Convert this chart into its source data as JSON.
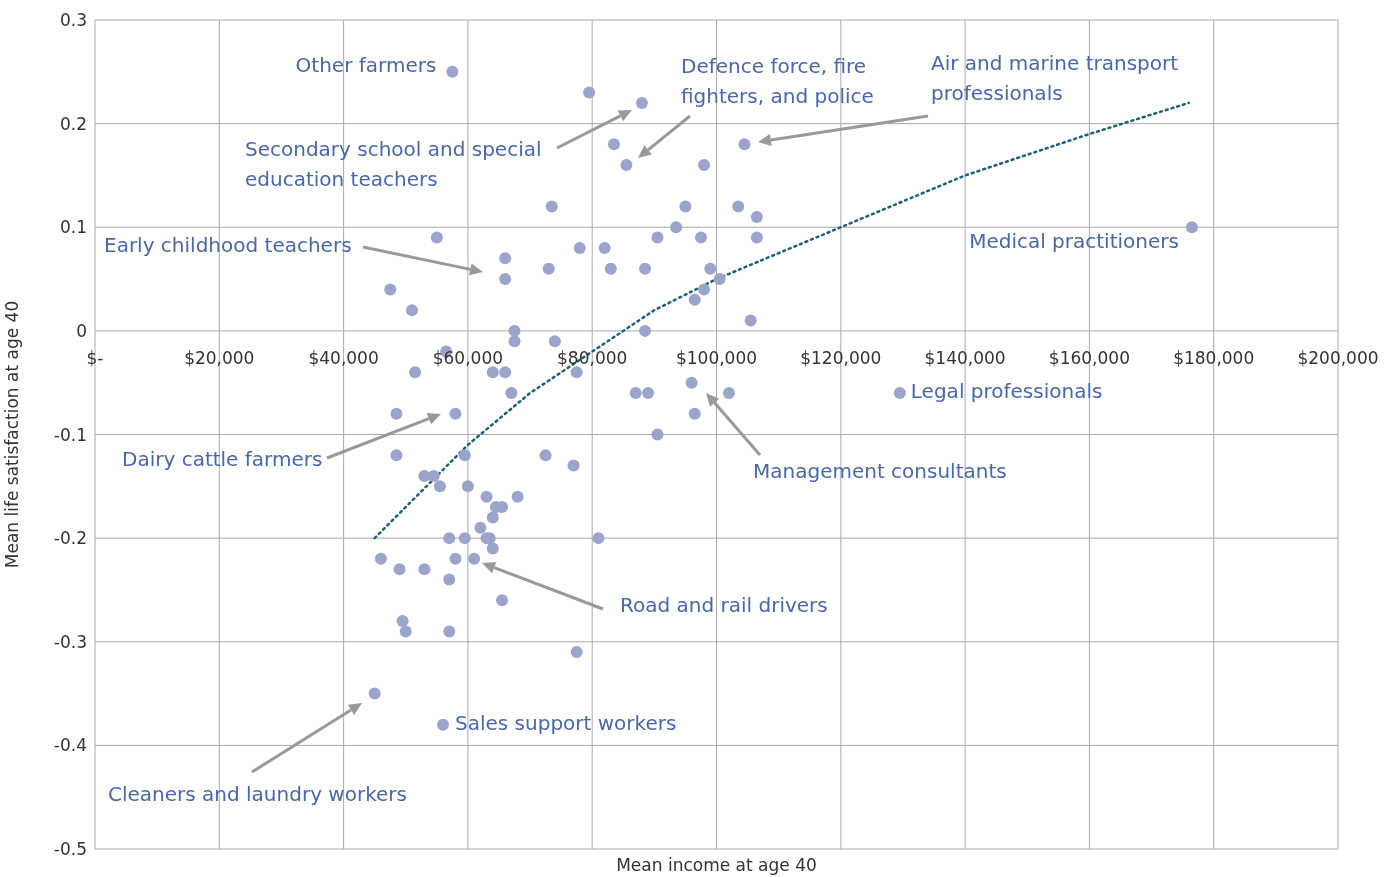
{
  "chart_data": {
    "type": "scatter",
    "xlabel": "Mean income at age 40",
    "ylabel": "Mean life satisfaction at age 40",
    "xlim": [
      0,
      200000
    ],
    "ylim": [
      -0.5,
      0.3
    ],
    "xticks": [
      {
        "value": 0,
        "label": "$-"
      },
      {
        "value": 20000,
        "label": "$20,000"
      },
      {
        "value": 40000,
        "label": "$40,000"
      },
      {
        "value": 60000,
        "label": "$60,000"
      },
      {
        "value": 80000,
        "label": "$80,000"
      },
      {
        "value": 100000,
        "label": "$100,000"
      },
      {
        "value": 120000,
        "label": "$120,000"
      },
      {
        "value": 140000,
        "label": "$140,000"
      },
      {
        "value": 160000,
        "label": "$160,000"
      },
      {
        "value": 180000,
        "label": "$180,000"
      },
      {
        "value": 200000,
        "label": "$200,000"
      }
    ],
    "yticks": [
      -0.5,
      -0.4,
      -0.3,
      -0.2,
      -0.1,
      0,
      0.1,
      0.2,
      0.3
    ],
    "grid": true,
    "marker": "circle",
    "series": [
      {
        "color": "#9ba5cc",
        "x": [
          57500,
          79500,
          88000,
          83500,
          85500,
          104500,
          98000,
          73500,
          95000,
          103500,
          106500,
          55000,
          90500,
          93500,
          97500,
          106500,
          66000,
          78000,
          82000,
          73000,
          83000,
          88500,
          99000,
          47500,
          66000,
          98000,
          100500,
          96500,
          51000,
          105500,
          67500,
          88500,
          67500,
          74000,
          56500,
          51500,
          64000,
          66000,
          77500,
          67000,
          87000,
          89000,
          96000,
          102000,
          129500,
          48500,
          58000,
          96500,
          90500,
          48500,
          59500,
          72500,
          77000,
          53000,
          54500,
          55500,
          60000,
          63000,
          68000,
          64500,
          65500,
          64000,
          62000,
          57000,
          59500,
          63000,
          63500,
          81000,
          64000,
          46000,
          58000,
          61000,
          49000,
          53000,
          57000,
          65500,
          49500,
          50000,
          57000,
          77500,
          45000,
          56000,
          176500
        ],
        "values": [
          0.25,
          0.23,
          0.22,
          0.18,
          0.16,
          0.18,
          0.16,
          0.12,
          0.12,
          0.12,
          0.11,
          0.09,
          0.09,
          0.1,
          0.09,
          0.09,
          0.07,
          0.08,
          0.08,
          0.06,
          0.06,
          0.06,
          0.06,
          0.04,
          0.05,
          0.04,
          0.05,
          0.03,
          0.02,
          0.01,
          0,
          0,
          -0.01,
          -0.01,
          -0.02,
          -0.04,
          -0.04,
          -0.04,
          -0.04,
          -0.06,
          -0.06,
          -0.06,
          -0.05,
          -0.06,
          -0.06,
          -0.08,
          -0.08,
          -0.08,
          -0.1,
          -0.12,
          -0.12,
          -0.12,
          -0.13,
          -0.14,
          -0.14,
          -0.15,
          -0.15,
          -0.16,
          -0.16,
          -0.17,
          -0.17,
          -0.18,
          -0.19,
          -0.2,
          -0.2,
          -0.2,
          -0.2,
          -0.2,
          -0.21,
          -0.22,
          -0.22,
          -0.22,
          -0.23,
          -0.23,
          -0.24,
          -0.26,
          -0.28,
          -0.29,
          -0.29,
          -0.31,
          -0.35,
          -0.38,
          0.1
        ]
      },
      {
        "type": "line",
        "color": "#1f5f7a",
        "line_style": "dotted",
        "marker": "none",
        "x": [
          45000,
          50000,
          60000,
          70000,
          80000,
          90000,
          100000,
          120000,
          140000,
          160000,
          176000
        ],
        "values": [
          -0.2,
          -0.17,
          -0.11,
          -0.06,
          -0.02,
          0.02,
          0.05,
          0.1,
          0.15,
          0.19,
          0.22
        ]
      }
    ],
    "annotations": [
      {
        "text": "Other farmers",
        "x": 57500,
        "y": 0.25
      },
      "Defence force, fire fighters, and police",
      "Air and marine transport professionals",
      "Secondary school and special education teachers",
      "Early childhood teachers",
      {
        "text": "Medical practitioners",
        "x": 176500,
        "y": 0.1
      },
      {
        "text": "Legal professionals",
        "x": 129500,
        "y": -0.06
      },
      "Dairy cattle farmers",
      "Management consultants",
      "Road and rail drivers",
      {
        "text": "Sales support workers",
        "x": 56000,
        "y": -0.38
      },
      "Cleaners and laundry workers"
    ]
  }
}
